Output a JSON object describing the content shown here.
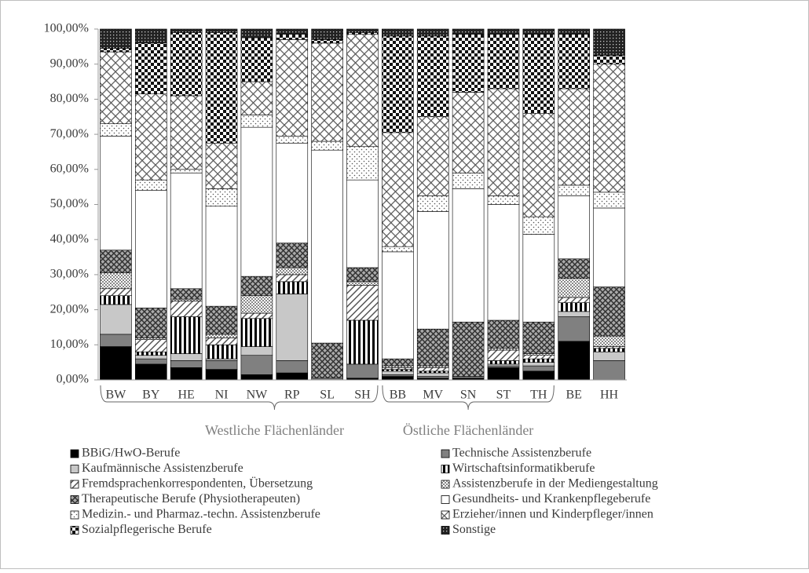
{
  "chart_data": {
    "type": "stacked-bar",
    "categories": [
      "BW",
      "BY",
      "HE",
      "NI",
      "NW",
      "RP",
      "SL",
      "SH",
      "BB",
      "MV",
      "SN",
      "ST",
      "TH",
      "BE",
      "HH"
    ],
    "groups": [
      {
        "label": "Westliche Flächenländer",
        "from": 0,
        "to": 7
      },
      {
        "label": "Östliche Flächenländer",
        "from": 8,
        "to": 12
      }
    ],
    "ylim": [
      0,
      100
    ],
    "yticks": [
      {
        "value": 0,
        "label": "0,00%"
      },
      {
        "value": 10,
        "label": "10,00%"
      },
      {
        "value": 20,
        "label": "20,00%"
      },
      {
        "value": 30,
        "label": "30,00%"
      },
      {
        "value": 40,
        "label": "40,00%"
      },
      {
        "value": 50,
        "label": "50,00%"
      },
      {
        "value": 60,
        "label": "60,00%"
      },
      {
        "value": 70,
        "label": "70,00%"
      },
      {
        "value": 80,
        "label": "80,00%"
      },
      {
        "value": 90,
        "label": "90,00%"
      },
      {
        "value": 100,
        "label": "100,00%"
      }
    ],
    "series": [
      {
        "name": "BBiG/HwO-Berufe",
        "color": "#000000",
        "pattern": "solid",
        "values": [
          9.5,
          4.5,
          3.5,
          3,
          1.5,
          2,
          0,
          0.5,
          1,
          0.5,
          0.5,
          3.5,
          2.5,
          11,
          0
        ]
      },
      {
        "name": "Technische Assistenzberufe",
        "color": "#808080",
        "pattern": "solid",
        "values": [
          3.5,
          1.5,
          2,
          2.5,
          5.5,
          3.5,
          0.5,
          4,
          0.5,
          0.5,
          0.5,
          0.5,
          1.5,
          7,
          5.5
        ]
      },
      {
        "name": "Kaufmännische Assistenzberufe",
        "color": "#c8c8c8",
        "pattern": "solid",
        "values": [
          8.5,
          1,
          2,
          0.5,
          2.5,
          19,
          0,
          0,
          1,
          1,
          0,
          0.5,
          1,
          1.5,
          2.5
        ]
      },
      {
        "name": "Wirtschaftsinformatikberufe",
        "color": "#000000",
        "pattern": "vertical",
        "values": [
          2.5,
          1,
          10.5,
          4,
          8,
          3.5,
          0,
          12.5,
          0.5,
          0.5,
          0,
          1,
          1,
          2.5,
          1
        ]
      },
      {
        "name": "Fremdsprachenkorrespondenten, Übersetzung",
        "color": "#606060",
        "pattern": "diagonal",
        "values": [
          2,
          3.5,
          4.5,
          2,
          1.5,
          2,
          0,
          10,
          0.5,
          1,
          0,
          3,
          1,
          1.5,
          0.5
        ]
      },
      {
        "name": "Assistenzberufe in der Mediengestaltung",
        "color": "#808080",
        "pattern": "smallcheck",
        "values": [
          4.5,
          0.5,
          0.5,
          1,
          5,
          2,
          0,
          1,
          0.5,
          0.5,
          0,
          0.5,
          0.5,
          5.5,
          3
        ]
      },
      {
        "name": "Therapeutische Berufe (Physiotherapeuten)",
        "color": "#404040",
        "pattern": "crosshatch",
        "values": [
          6.5,
          8.5,
          3,
          8,
          5.5,
          7,
          10,
          4,
          2,
          10.5,
          15.5,
          8,
          9,
          5.5,
          14
        ]
      },
      {
        "name": "Gesundheits- und Krankenpflegeberufe",
        "color": "#ffffff",
        "pattern": "solid",
        "values": [
          32.5,
          33.5,
          33,
          28.5,
          42.5,
          28.5,
          55,
          25,
          30.5,
          33.5,
          38,
          33,
          25,
          18,
          22.5
        ]
      },
      {
        "name": "Medizin.- und Pharmaz.-techn. Assistenzberufe",
        "color": "#707070",
        "pattern": "dots",
        "values": [
          3.5,
          3,
          1,
          5,
          3.5,
          2,
          2.5,
          9.5,
          1.5,
          4.5,
          4.5,
          2.5,
          5,
          3,
          4.5
        ]
      },
      {
        "name": "Erzieher/innen und Kinderpfleger/innen",
        "color": "#606060",
        "pattern": "lattice",
        "values": [
          20.5,
          24.5,
          21,
          13,
          9.5,
          27.5,
          28,
          32,
          32.5,
          22.5,
          23,
          30.5,
          29.5,
          27.5,
          36.5
        ]
      },
      {
        "name": "Sozialpflegerische Berufe",
        "color": "#000000",
        "pattern": "checker",
        "values": [
          1,
          14.5,
          18,
          31.5,
          12.5,
          1.5,
          1,
          0.5,
          27.5,
          23,
          16.5,
          15.5,
          22.5,
          15.5,
          2.5
        ]
      },
      {
        "name": "Sonstige",
        "color": "#000000",
        "pattern": "dense",
        "values": [
          5.5,
          4,
          1,
          1,
          2.5,
          1.5,
          3,
          1,
          2,
          2,
          1.5,
          1.5,
          1.5,
          1.5,
          7.5
        ]
      }
    ]
  }
}
